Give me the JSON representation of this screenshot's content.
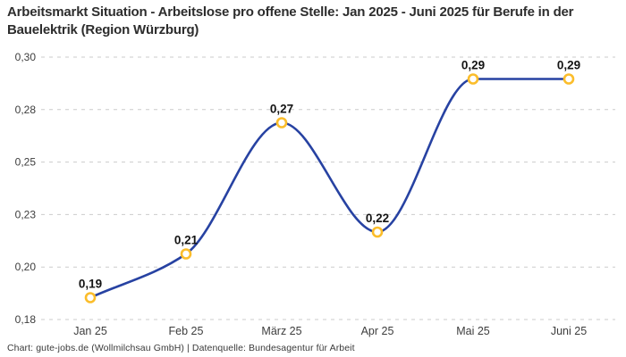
{
  "header": {
    "title": "Arbeitsmarkt Situation - Arbeitslose pro offene Stelle: Jan 2025 - Juni 2025 für Berufe in der Bauelektrik (Region Würzburg)"
  },
  "footer": {
    "text": "Chart: gute-jobs.de (Wollmilchsau GmbH) | Datenquelle: Bundesagentur für Arbeit"
  },
  "colors": {
    "line": "#2742A2",
    "marker_stroke": "#FBBD2B",
    "marker_fill": "#FFFFFF",
    "grid": "#CBCBCB",
    "title_text": "#2D2D2D",
    "axis_text": "#3D3D3D",
    "data_label_text": "#141414",
    "footer_text": "#3A3A3A",
    "background": "#FFFFFF"
  },
  "chart_data": {
    "type": "line",
    "title": "Arbeitsmarkt Situation - Arbeitslose pro offene Stelle: Jan 2025 - Juni 2025 für Berufe in der Bauelektrik (Region Würzburg)",
    "categories": [
      "Jan 25",
      "Feb 25",
      "März 25",
      "Apr 25",
      "Mai 25",
      "Juni 25"
    ],
    "series": [
      {
        "name": "Arbeitslose pro offene Stelle",
        "values": [
          0.19,
          0.21,
          0.27,
          0.22,
          0.29,
          0.29
        ],
        "value_labels": [
          "0,19",
          "0,21",
          "0,27",
          "0,22",
          "0,29",
          "0,29"
        ]
      }
    ],
    "xlabel": "",
    "ylabel": "",
    "y_axis": {
      "min": 0.18,
      "max": 0.3,
      "tick_labels_top_to_bottom": [
        "0,30",
        "0,28",
        "0,25",
        "0,23",
        "0,20",
        "0,18"
      ]
    },
    "grid": "horizontal-dashed",
    "legend": "none",
    "curve": "monotone",
    "markers": "open-circle"
  }
}
